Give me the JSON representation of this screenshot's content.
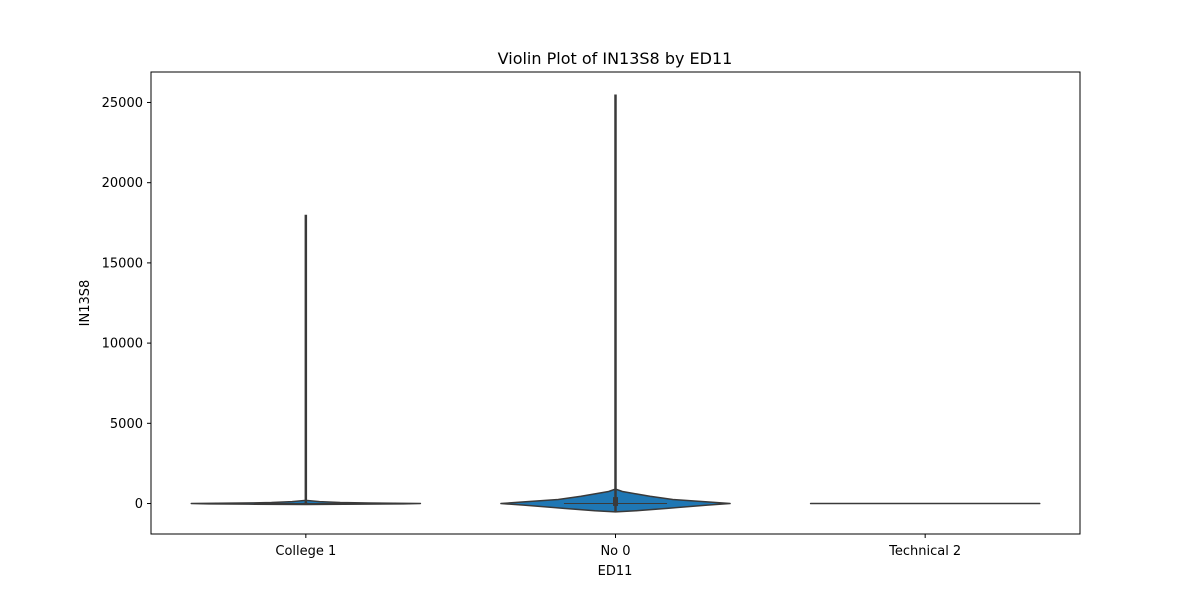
{
  "chart_data": {
    "type": "violin",
    "title": "Violin Plot of IN13S8 by ED11",
    "xlabel": "ED11",
    "ylabel": "IN13S8",
    "categories": [
      "College 1",
      "No 0",
      "Technical 2"
    ],
    "ylim": [
      -1900,
      26900
    ],
    "yticks": [
      0,
      5000,
      10000,
      15000,
      20000,
      25000
    ],
    "grid": false,
    "color": "#1f77b4",
    "edge_color": "#3a3a3a",
    "violins": [
      {
        "category": "College 1",
        "min": -60,
        "max": 18000,
        "median": 0,
        "q1": -20,
        "q3": 40,
        "profile": [
          {
            "y": -60,
            "w": 0.0
          },
          {
            "y": -40,
            "w": 0.5
          },
          {
            "y": -20,
            "w": 0.85
          },
          {
            "y": 0,
            "w": 1.0
          },
          {
            "y": 30,
            "w": 0.55
          },
          {
            "y": 60,
            "w": 0.3
          },
          {
            "y": 120,
            "w": 0.12
          },
          {
            "y": 200,
            "w": 0.0
          }
        ]
      },
      {
        "category": "No 0",
        "min": -500,
        "max": 25500,
        "median": 0,
        "q1": -150,
        "q3": 400,
        "profile": [
          {
            "y": -520,
            "w": 0.0
          },
          {
            "y": -450,
            "w": 0.18
          },
          {
            "y": -300,
            "w": 0.45
          },
          {
            "y": -100,
            "w": 0.8
          },
          {
            "y": 0,
            "w": 1.0
          },
          {
            "y": 100,
            "w": 0.8
          },
          {
            "y": 250,
            "w": 0.5
          },
          {
            "y": 450,
            "w": 0.3
          },
          {
            "y": 600,
            "w": 0.18
          },
          {
            "y": 750,
            "w": 0.06
          },
          {
            "y": 900,
            "w": 0.0
          }
        ]
      },
      {
        "category": "Technical 2",
        "min": 0,
        "max": 0,
        "median": 0,
        "q1": 0,
        "q3": 0,
        "profile": [
          {
            "y": -1,
            "w": 0.0
          },
          {
            "y": 0,
            "w": 1.0
          },
          {
            "y": 1,
            "w": 0.0
          }
        ]
      }
    ]
  }
}
